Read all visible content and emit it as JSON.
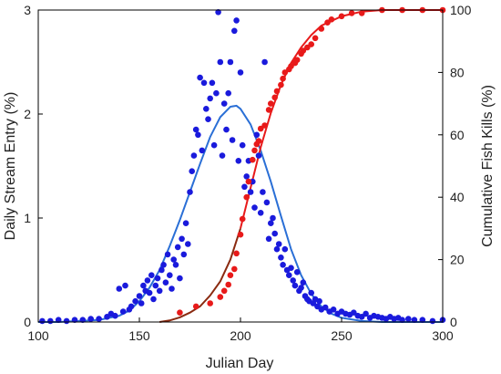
{
  "chart_data": {
    "type": "scatter",
    "title": "",
    "xlabel": "Julian Day",
    "ylabel": "Daily Stream Entry (%)",
    "y2label": "Cumulative Fish Kills (%)",
    "xlim": [
      100,
      300
    ],
    "ylim": [
      0,
      3
    ],
    "y2lim": [
      0,
      100
    ],
    "xticks": [
      100,
      150,
      200,
      250,
      300
    ],
    "yticks": [
      0,
      1,
      2,
      3
    ],
    "y2ticks": [
      0,
      20,
      40,
      60,
      80,
      100
    ],
    "grid": false,
    "legend": "none",
    "colors": {
      "entry_points": "#1a1adc",
      "entry_curve": "#2a6fd6",
      "kills_points": "#e81a1a",
      "kills_curve_lower": "#8a2a10",
      "kills_curve_upper": "#e81a1a"
    },
    "series": [
      {
        "axis": "left",
        "kind": "points",
        "x": [
          102,
          106,
          110,
          114,
          118,
          122,
          126,
          130,
          134,
          136,
          138,
          140,
          142,
          143,
          145,
          146,
          148,
          150,
          151,
          152,
          153,
          154,
          155,
          156,
          157,
          158,
          159,
          160,
          161,
          162,
          163,
          164,
          165,
          166,
          167,
          168,
          169,
          170,
          171,
          172,
          173,
          174,
          175,
          176,
          177,
          178,
          179,
          180,
          181,
          182,
          183,
          184,
          185,
          186,
          187,
          188,
          189,
          190,
          191,
          192,
          193,
          194,
          195,
          196,
          197,
          198,
          199,
          200,
          201,
          202,
          203,
          204,
          205,
          206,
          207,
          208,
          209,
          210,
          211,
          212,
          213,
          214,
          215,
          216,
          217,
          218,
          219,
          220,
          221,
          222,
          223,
          224,
          225,
          226,
          227,
          228,
          229,
          230,
          231,
          232,
          233,
          234,
          235,
          236,
          237,
          238,
          239,
          240,
          242,
          244,
          246,
          248,
          250,
          252,
          254,
          256,
          258,
          260,
          262,
          264,
          266,
          268,
          270,
          272,
          274,
          276,
          278,
          280,
          283,
          286,
          290,
          295,
          300
        ],
        "y": [
          0.01,
          0.01,
          0.02,
          0.01,
          0.02,
          0.02,
          0.03,
          0.03,
          0.05,
          0.08,
          0.06,
          0.32,
          0.1,
          0.35,
          0.12,
          0.15,
          0.2,
          0.25,
          0.18,
          0.35,
          0.3,
          0.4,
          0.28,
          0.45,
          0.22,
          0.35,
          0.42,
          0.3,
          0.5,
          0.55,
          0.38,
          0.65,
          0.45,
          0.32,
          0.6,
          0.55,
          0.72,
          0.42,
          0.8,
          0.65,
          0.95,
          0.75,
          1.25,
          1.45,
          1.6,
          1.85,
          1.8,
          2.35,
          1.65,
          2.3,
          2.05,
          1.95,
          2.15,
          2.3,
          1.7,
          2.2,
          2.98,
          2.5,
          1.6,
          2.1,
          1.85,
          2.2,
          2.5,
          1.75,
          2.8,
          2.9,
          1.55,
          2.4,
          1.7,
          1.3,
          1.4,
          1.55,
          1.25,
          1.35,
          1.1,
          1.8,
          1.6,
          1.05,
          1.25,
          2.5,
          1.15,
          0.8,
          0.95,
          1.0,
          0.85,
          0.7,
          0.75,
          0.62,
          0.55,
          0.7,
          0.5,
          0.45,
          0.52,
          0.4,
          0.35,
          0.48,
          0.3,
          0.33,
          0.38,
          0.25,
          0.22,
          0.2,
          0.28,
          0.18,
          0.22,
          0.15,
          0.2,
          0.12,
          0.14,
          0.1,
          0.12,
          0.08,
          0.1,
          0.08,
          0.07,
          0.09,
          0.06,
          0.05,
          0.08,
          0.04,
          0.06,
          0.05,
          0.04,
          0.03,
          0.05,
          0.03,
          0.04,
          0.02,
          0.03,
          0.02,
          0.02,
          0.01,
          0.02
        ]
      },
      {
        "axis": "left",
        "kind": "curve",
        "x": [
          100,
          110,
          120,
          130,
          140,
          145,
          150,
          155,
          160,
          165,
          170,
          175,
          180,
          185,
          190,
          195,
          198,
          200,
          205,
          210,
          215,
          220,
          225,
          230,
          235,
          240,
          245,
          250,
          260,
          270,
          280,
          290,
          300
        ],
        "y": [
          0.0,
          0.0,
          0.01,
          0.02,
          0.06,
          0.11,
          0.2,
          0.33,
          0.5,
          0.73,
          0.98,
          1.25,
          1.52,
          1.78,
          1.97,
          2.07,
          2.08,
          2.05,
          1.9,
          1.65,
          1.35,
          1.02,
          0.7,
          0.45,
          0.27,
          0.15,
          0.08,
          0.04,
          0.01,
          0.0,
          0.0,
          0.0,
          0.0
        ]
      },
      {
        "axis": "right",
        "kind": "points",
        "x": [
          170,
          178,
          185,
          190,
          192,
          194,
          195,
          197,
          198,
          200,
          201,
          203,
          204,
          206,
          207,
          208,
          209,
          210,
          212,
          214,
          215,
          217,
          218,
          220,
          221,
          222,
          224,
          225,
          227,
          228,
          230,
          231,
          233,
          235,
          237,
          240,
          243,
          245,
          250,
          255,
          260,
          270,
          280,
          290,
          300
        ],
        "y": [
          3,
          5,
          6,
          8,
          10,
          12,
          15,
          17,
          22,
          28,
          33,
          40,
          45,
          52,
          55,
          57,
          58,
          62,
          63,
          68,
          70,
          72,
          74,
          76,
          78,
          80,
          81,
          82,
          83,
          84,
          86,
          87,
          88,
          89,
          91,
          94,
          96,
          97,
          98,
          99,
          99,
          100,
          100,
          100,
          100
        ]
      },
      {
        "axis": "right",
        "kind": "curve",
        "x": [
          160,
          165,
          170,
          175,
          180,
          185,
          190,
          195,
          200,
          205,
          210,
          215,
          220,
          225,
          230,
          235,
          240,
          250,
          260,
          270,
          280,
          290,
          300
        ],
        "y": [
          0,
          0.5,
          1.5,
          3,
          5,
          8.5,
          13,
          20,
          30,
          43,
          56,
          67,
          76,
          83,
          88,
          92,
          95,
          98,
          99.5,
          100,
          100,
          100,
          100
        ]
      }
    ]
  }
}
